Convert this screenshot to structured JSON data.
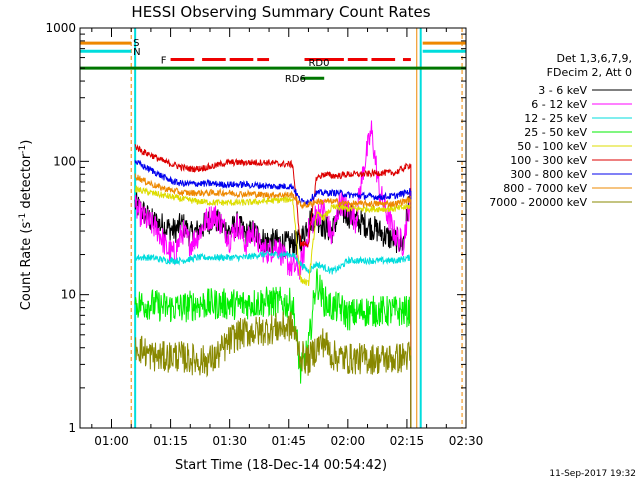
{
  "chart_data": {
    "type": "line",
    "title": "HESSI Observing Summary Count Rates",
    "xlabel": "Start Time (18-Dec-14 00:54:42)",
    "ylabel_main": "Count Rate (s",
    "ylabel_sup1": "-1",
    "ylabel_mid": " detector",
    "ylabel_sup2": "-1",
    "ylabel_end": ")",
    "y_scale": "log",
    "ylim": [
      1,
      1000
    ],
    "xlim_minutes": [
      52,
      150
    ],
    "y_ticks": [
      {
        "value": 1,
        "label": "1"
      },
      {
        "value": 10,
        "label": "10"
      },
      {
        "value": 100,
        "label": "100"
      },
      {
        "value": 1000,
        "label": "1000"
      }
    ],
    "x_ticks": [
      {
        "minutes": 60,
        "label": "01:00"
      },
      {
        "minutes": 75,
        "label": "01:15"
      },
      {
        "minutes": 90,
        "label": "01:30"
      },
      {
        "minutes": 105,
        "label": "01:45"
      },
      {
        "minutes": 120,
        "label": "02:00"
      },
      {
        "minutes": 135,
        "label": "02:15"
      },
      {
        "minutes": 150,
        "label": "02:30"
      }
    ],
    "legend_header": [
      "Det 1,3,6,7,9,",
      "FDecim 2, Att 0"
    ],
    "legend_placement": "right",
    "series": [
      {
        "name": "3 - 6 keV",
        "color": "#000000",
        "x": [
          66,
          68,
          70,
          72,
          74,
          76,
          78,
          80,
          82,
          84,
          86,
          88,
          90,
          92,
          94,
          96,
          98,
          100,
          102,
          104,
          106,
          108,
          110,
          112,
          114,
          116,
          118,
          120,
          122,
          124,
          126,
          128,
          130,
          132,
          134,
          136
        ],
        "y": [
          48,
          42,
          36,
          34,
          32,
          30,
          34,
          28,
          30,
          34,
          38,
          32,
          30,
          34,
          28,
          30,
          26,
          25,
          25,
          24,
          24,
          25,
          36,
          38,
          32,
          30,
          42,
          40,
          36,
          34,
          32,
          30,
          27,
          26,
          24,
          60
        ]
      },
      {
        "name": "6 - 12 keV",
        "color": "#ff00ff",
        "x": [
          66,
          68,
          70,
          72,
          74,
          76,
          78,
          80,
          82,
          84,
          86,
          88,
          90,
          92,
          94,
          96,
          98,
          100,
          102,
          104,
          106,
          108,
          110,
          112,
          114,
          116,
          118,
          120,
          122,
          124,
          126,
          128,
          130,
          132,
          134,
          136
        ],
        "y": [
          45,
          38,
          34,
          30,
          22,
          20,
          30,
          24,
          28,
          36,
          40,
          34,
          26,
          34,
          24,
          30,
          22,
          21,
          24,
          18,
          16,
          16,
          30,
          40,
          44,
          26,
          50,
          44,
          36,
          90,
          170,
          60,
          40,
          28,
          24,
          55
        ]
      },
      {
        "name": "12 - 25 keV",
        "color": "#00dddd",
        "x": [
          66,
          70,
          74,
          78,
          82,
          86,
          90,
          94,
          98,
          102,
          106,
          108,
          110,
          112,
          114,
          116,
          118,
          120,
          124,
          128,
          132,
          136
        ],
        "y": [
          19,
          19,
          18,
          18,
          19,
          19,
          19,
          19,
          20,
          20,
          20,
          17,
          15,
          17,
          16,
          15,
          16,
          18,
          18,
          18,
          18,
          19
        ]
      },
      {
        "name": "25 - 50 keV",
        "color": "#00ee00",
        "x": [
          66,
          70,
          74,
          78,
          82,
          86,
          90,
          94,
          98,
          102,
          106,
          108,
          110,
          112,
          114,
          116,
          118,
          120,
          124,
          128,
          132,
          136
        ],
        "y": [
          8.5,
          8.5,
          8,
          8,
          8.5,
          8.5,
          8.5,
          8.5,
          8.8,
          8.8,
          8.5,
          2.6,
          4,
          13,
          9,
          8,
          8,
          7,
          7.5,
          7.5,
          7.5,
          7.5
        ]
      },
      {
        "name": "50 - 100 keV",
        "color": "#dddd00",
        "x": [
          66,
          70,
          74,
          78,
          82,
          86,
          90,
          94,
          98,
          102,
          106,
          108,
          110,
          112,
          114,
          116,
          118,
          120,
          124,
          128,
          132,
          136
        ],
        "y": [
          62,
          58,
          55,
          52,
          50,
          49,
          49,
          49,
          50,
          51,
          52,
          13,
          12,
          40,
          38,
          45,
          45,
          44,
          44,
          44,
          44,
          46
        ]
      },
      {
        "name": "100 - 300 keV",
        "color": "#dd0000",
        "x": [
          66,
          68,
          70,
          72,
          74,
          76,
          78,
          80,
          82,
          84,
          86,
          88,
          90,
          92,
          94,
          96,
          98,
          100,
          102,
          104,
          106,
          108,
          110,
          112,
          114,
          116,
          118,
          120,
          124,
          128,
          132,
          136
        ],
        "y": [
          130,
          118,
          112,
          104,
          98,
          94,
          90,
          88,
          88,
          90,
          92,
          96,
          98,
          98,
          98,
          98,
          98,
          98,
          96,
          95,
          95,
          24,
          24,
          75,
          80,
          78,
          78,
          80,
          80,
          82,
          82,
          95
        ]
      },
      {
        "name": "300 - 800 keV",
        "color": "#0000ee",
        "x": [
          66,
          68,
          70,
          72,
          74,
          76,
          78,
          80,
          82,
          84,
          86,
          88,
          90,
          92,
          94,
          96,
          98,
          100,
          102,
          104,
          106,
          108,
          110,
          112,
          114,
          116,
          118,
          120,
          124,
          128,
          132,
          136
        ],
        "y": [
          100,
          92,
          86,
          80,
          74,
          70,
          68,
          68,
          68,
          68,
          68,
          67,
          67,
          67,
          67,
          66,
          66,
          65,
          65,
          65,
          65,
          50,
          50,
          58,
          58,
          58,
          58,
          56,
          55,
          54,
          55,
          60
        ]
      },
      {
        "name": "800 - 7000 keV",
        "color": "#ee8800",
        "x": [
          66,
          68,
          70,
          72,
          74,
          76,
          78,
          80,
          82,
          84,
          86,
          88,
          90,
          92,
          94,
          96,
          98,
          100,
          102,
          104,
          106,
          108,
          110,
          112,
          114,
          116,
          118,
          120,
          124,
          128,
          132,
          136
        ],
        "y": [
          78,
          72,
          68,
          64,
          62,
          60,
          58,
          58,
          58,
          58,
          58,
          58,
          58,
          57,
          57,
          57,
          56,
          56,
          56,
          56,
          56,
          47,
          47,
          50,
          50,
          50,
          49,
          48,
          48,
          48,
          48,
          52
        ]
      },
      {
        "name": "7000 - 20000 keV",
        "color": "#888800",
        "x": [
          66,
          68,
          70,
          72,
          74,
          76,
          78,
          80,
          82,
          84,
          86,
          88,
          90,
          92,
          94,
          96,
          98,
          100,
          102,
          104,
          106,
          108,
          110,
          112,
          114,
          116,
          118,
          120,
          124,
          128,
          132,
          136
        ],
        "y": [
          4.2,
          3.8,
          3.5,
          3.4,
          3.4,
          3.5,
          3.4,
          3.3,
          3.2,
          3.2,
          3.3,
          3.8,
          4.5,
          5,
          5.2,
          5.3,
          5.3,
          5.5,
          5.6,
          5.7,
          5.8,
          3.5,
          3.2,
          4,
          4.5,
          3.5,
          3.4,
          3.3,
          3.3,
          3.3,
          3.3,
          3.5
        ]
      }
    ],
    "flags": [
      {
        "label": "S",
        "color": "#ee8800",
        "y": 770,
        "segments": [
          [
            52,
            65
          ],
          [
            139,
            150
          ]
        ]
      },
      {
        "label": "N",
        "color": "#00dddd",
        "y": 670,
        "segments": [
          [
            52,
            65
          ],
          [
            139,
            150
          ]
        ]
      },
      {
        "label": "F",
        "color": "#ee0000",
        "y": 580,
        "segments": [
          [
            75,
            81
          ],
          [
            83,
            89
          ],
          [
            90,
            96
          ],
          [
            97,
            100
          ],
          [
            109,
            119
          ],
          [
            120,
            125
          ],
          [
            126,
            132
          ],
          [
            134,
            136
          ]
        ]
      },
      {
        "label": "RD0",
        "color": "#007700",
        "y": 500,
        "segments": [
          [
            52,
            150
          ]
        ]
      },
      {
        "label": "RD6",
        "color": "#007700",
        "y": 420,
        "segments": [
          [
            108,
            114
          ]
        ]
      }
    ],
    "orange_verticals_minutes": [
      65,
      149
    ],
    "cyan_verticals_minutes": [
      66,
      138.5
    ],
    "orange_solid_minutes": [
      137.5
    ]
  },
  "footer": {
    "timestamp": "11-Sep-2017 19:32"
  }
}
